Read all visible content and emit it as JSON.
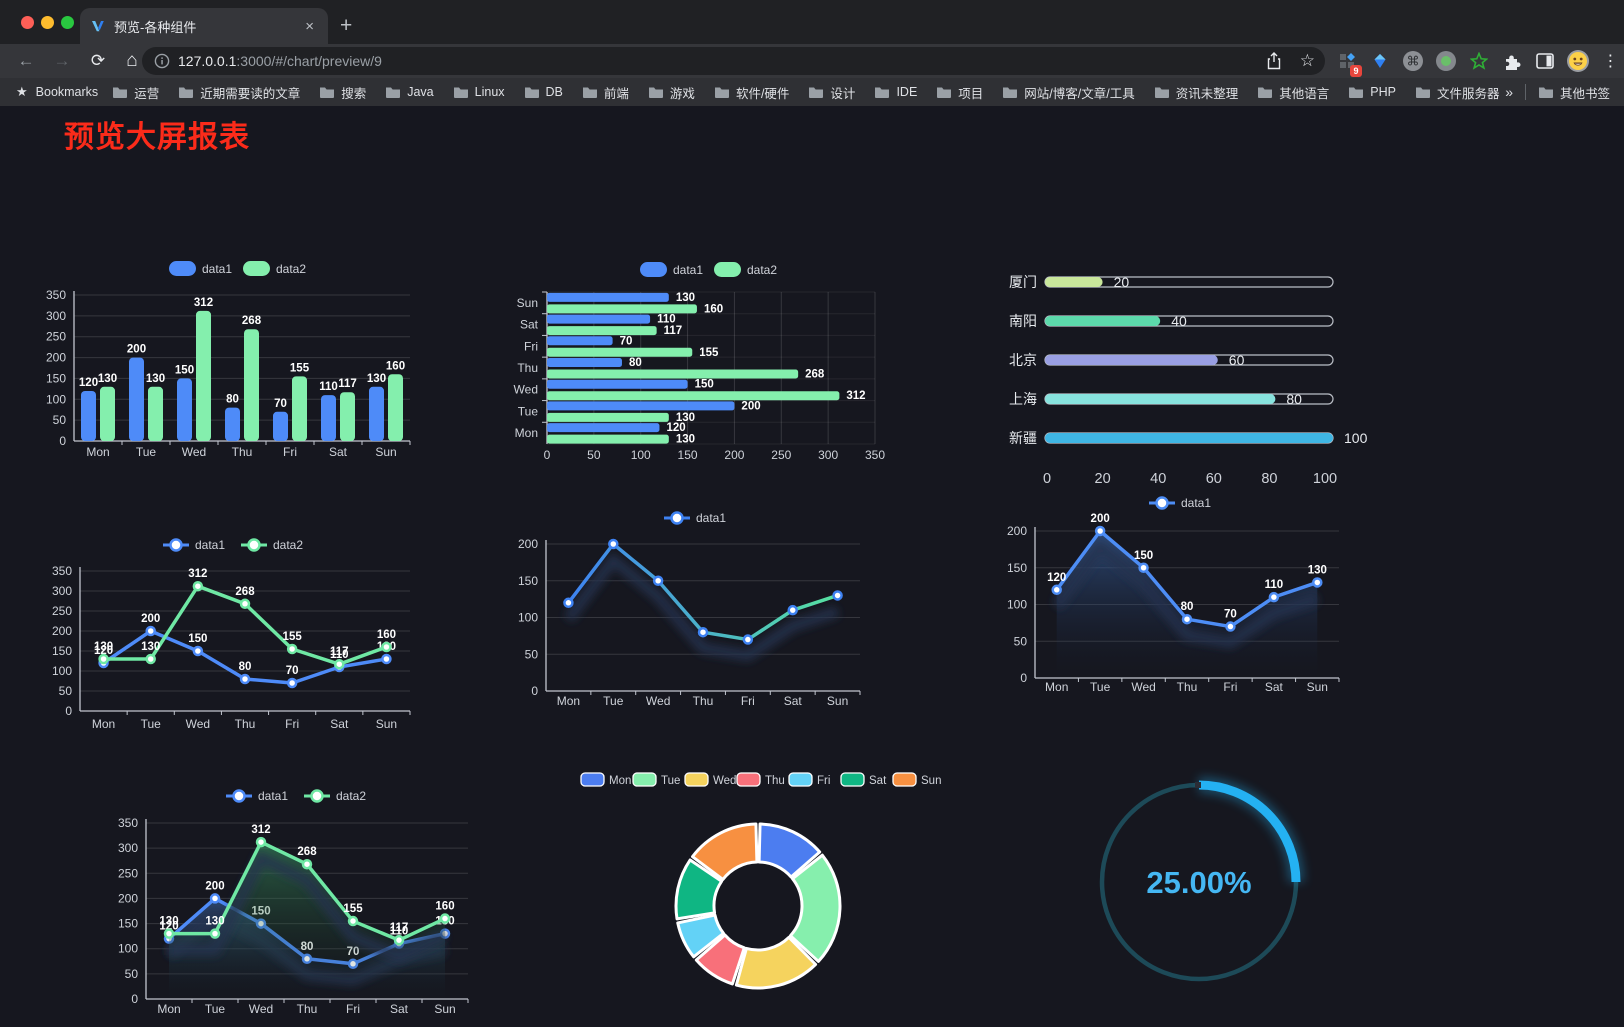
{
  "browser": {
    "tab_title": "预览-各种组件",
    "url_host": "127.0.0.1",
    "url_rest": ":3000/#/chart/preview/9",
    "bookmarks_label": "Bookmarks",
    "bookmarks": [
      "运营",
      "近期需要读的文章",
      "搜索",
      "Java",
      "Linux",
      "DB",
      "前端",
      "游戏",
      "软件/硬件",
      "设计",
      "IDE",
      "项目",
      "网站/博客/文章/工具",
      "资讯未整理",
      "其他语言",
      "PHP",
      "文件服务器"
    ],
    "overflow_chevron": "»",
    "other_bookmarks": "其他书签",
    "extension_badge": "9",
    "close_label": "×",
    "newtab_label": "+",
    "back_label": "←",
    "forward_label": "→",
    "reload_label": "⟳",
    "home_label": "⌂",
    "menu_label": "⋮",
    "star_label": "☆",
    "bookmark_star": "★"
  },
  "page": {
    "title": "预览大屏报表",
    "title_color": "#fb2b1a"
  },
  "chart_data": [
    {
      "id": "bar-vertical",
      "type": "bar",
      "categories": [
        "Mon",
        "Tue",
        "Wed",
        "Thu",
        "Fri",
        "Sat",
        "Sun"
      ],
      "series": [
        {
          "name": "data1",
          "color": "#4e8bf8",
          "values": [
            120,
            200,
            150,
            80,
            70,
            110,
            130
          ]
        },
        {
          "name": "data2",
          "color": "#84efad",
          "values": [
            130,
            130,
            312,
            268,
            155,
            117,
            160
          ]
        }
      ],
      "ylim": [
        0,
        350
      ],
      "ytick_step": 50,
      "value_labels": true
    },
    {
      "id": "bar-horizontal",
      "type": "hbar",
      "categories_top_to_bottom": [
        "Sun",
        "Sat",
        "Fri",
        "Thu",
        "Wed",
        "Tue",
        "Mon"
      ],
      "series": [
        {
          "name": "data1",
          "color": "#4e8bf8",
          "values_top_to_bottom": [
            130,
            110,
            70,
            80,
            150,
            200,
            120
          ]
        },
        {
          "name": "data2",
          "color": "#84efad",
          "values_top_to_bottom": [
            160,
            117,
            155,
            268,
            312,
            130,
            130
          ]
        }
      ],
      "xlim": [
        0,
        350
      ],
      "xtick_step": 50,
      "value_labels": true
    },
    {
      "id": "progress-list",
      "type": "progress",
      "items": [
        {
          "label": "厦门",
          "value": 20,
          "color": "#c9e79b"
        },
        {
          "label": "南阳",
          "value": 40,
          "color": "#5cd9ab"
        },
        {
          "label": "北京",
          "value": 60,
          "color": "#999fe3"
        },
        {
          "label": "上海",
          "value": 80,
          "color": "#88e3de"
        },
        {
          "label": "新疆",
          "value": 100,
          "color": "#3fb6e4"
        }
      ],
      "max": 100,
      "xticks": [
        0,
        20,
        40,
        60,
        80,
        100
      ]
    },
    {
      "id": "line-two-series",
      "type": "line",
      "categories": [
        "Mon",
        "Tue",
        "Wed",
        "Thu",
        "Fri",
        "Sat",
        "Sun"
      ],
      "series": [
        {
          "name": "data1",
          "color": "#4e8bf8",
          "values": [
            120,
            200,
            150,
            80,
            70,
            110,
            130
          ]
        },
        {
          "name": "data2",
          "color": "#6fe8a4",
          "values": [
            130,
            130,
            312,
            268,
            155,
            117,
            160
          ]
        }
      ],
      "ylim": [
        0,
        350
      ],
      "ytick_step": 50,
      "value_labels": true
    },
    {
      "id": "line-gradient",
      "type": "line",
      "categories": [
        "Mon",
        "Tue",
        "Wed",
        "Thu",
        "Fri",
        "Sat",
        "Sun"
      ],
      "series": [
        {
          "name": "data1",
          "color": "#4e8bf8",
          "gradient": [
            "#3e82f2",
            "#57e2a0"
          ],
          "shadow": true,
          "values": [
            120,
            200,
            150,
            80,
            70,
            110,
            130
          ]
        }
      ],
      "ylim": [
        0,
        200
      ],
      "ytick_step": 50,
      "value_labels": false
    },
    {
      "id": "line-area",
      "type": "line",
      "categories": [
        "Mon",
        "Tue",
        "Wed",
        "Thu",
        "Fri",
        "Sat",
        "Sun"
      ],
      "series": [
        {
          "name": "data1",
          "color": "#4d8df5",
          "area": [
            "rgba(62,110,180,0.60)",
            "rgba(20,30,55,0)"
          ],
          "shadow": true,
          "values": [
            120,
            200,
            150,
            80,
            70,
            110,
            130
          ]
        }
      ],
      "ylim": [
        0,
        200
      ],
      "ytick_step": 50,
      "value_labels": true
    },
    {
      "id": "line-two-area",
      "type": "line",
      "categories": [
        "Mon",
        "Tue",
        "Wed",
        "Thu",
        "Fri",
        "Sat",
        "Sun"
      ],
      "series": [
        {
          "name": "data1",
          "color": "#4e8bf8",
          "area": [
            "rgba(62,110,180,0.55)",
            "rgba(20,30,55,0)"
          ],
          "shadow": true,
          "values": [
            120,
            200,
            150,
            80,
            70,
            110,
            130
          ]
        },
        {
          "name": "data2",
          "color": "#6fe8a4",
          "area": [
            "rgba(58,150,98,0.60)",
            "rgba(20,40,30,0)"
          ],
          "shadow": true,
          "values": [
            130,
            130,
            312,
            268,
            155,
            117,
            160
          ]
        }
      ],
      "ylim": [
        0,
        350
      ],
      "ytick_step": 50,
      "value_labels": true
    },
    {
      "id": "donut",
      "type": "pie",
      "items": [
        {
          "label": "Mon",
          "value": 120,
          "color": "#4c7df0"
        },
        {
          "label": "Tue",
          "value": 200,
          "color": "#86efad"
        },
        {
          "label": "Wed",
          "value": 150,
          "color": "#f5d35e"
        },
        {
          "label": "Thu",
          "value": 80,
          "color": "#f8707a"
        },
        {
          "label": "Fri",
          "value": 70,
          "color": "#63d2f6"
        },
        {
          "label": "Sat",
          "value": 110,
          "color": "#0fb683"
        },
        {
          "label": "Sun",
          "value": 130,
          "color": "#f79041"
        }
      ]
    },
    {
      "id": "gauge",
      "type": "gauge",
      "value": 25,
      "display": "25.00%",
      "color": "#24b1f2",
      "track_color": "#1d4a58",
      "text_color": "#45b7f3"
    }
  ]
}
